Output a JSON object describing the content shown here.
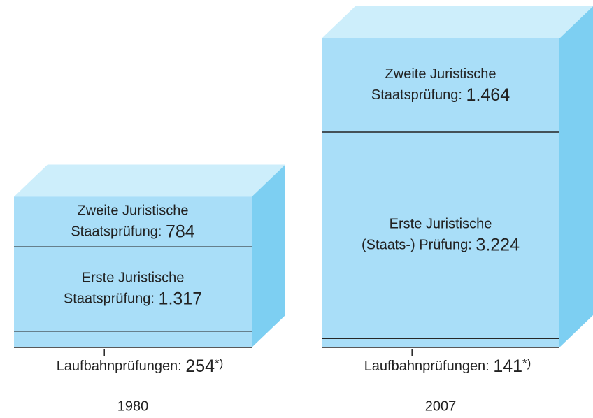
{
  "chart_data": {
    "type": "stacked-box",
    "categories": [
      "1980",
      "2007"
    ],
    "series": [
      {
        "labels": [
          [
            "Laufbahnprüfungen:"
          ],
          [
            "Laufbahnprüfungen:"
          ]
        ],
        "values": [
          254,
          141
        ],
        "value_labels": [
          "254",
          "141"
        ],
        "footnote": "*)"
      },
      {
        "labels": [
          [
            "Erste Juristische",
            "Staatsprüfung:"
          ],
          [
            "Erste Juristische",
            "(Staats-) Prüfung:"
          ]
        ],
        "values": [
          1317,
          3224
        ],
        "value_labels": [
          "1.317",
          "3.224"
        ]
      },
      {
        "labels": [
          [
            "Zweite Juristische",
            "Staatsprüfung:"
          ],
          [
            "Zweite Juristische",
            "Staatsprüfung:"
          ]
        ],
        "values": [
          784,
          1464
        ],
        "value_labels": [
          "784",
          "1.464"
        ]
      }
    ],
    "colors": {
      "front": "#a9def8",
      "top": "#cdeefb",
      "side": "#7dcff2"
    }
  }
}
